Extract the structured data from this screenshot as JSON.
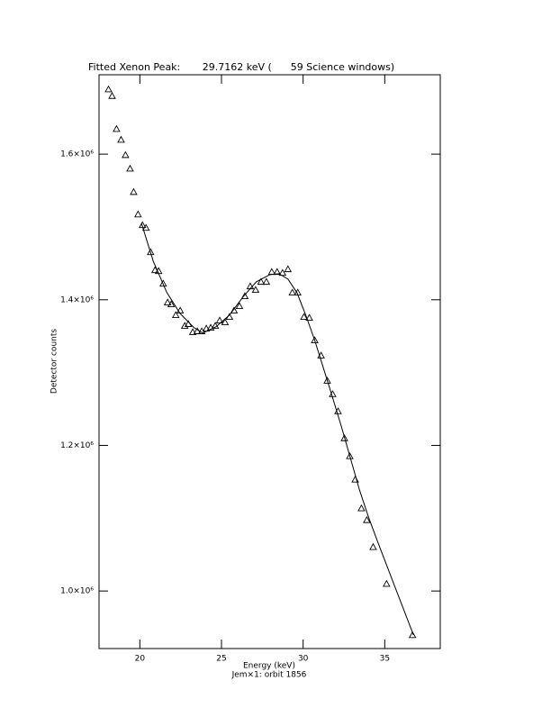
{
  "chart_data": {
    "type": "scatter",
    "title": "Fitted Xenon Peak:       29.7162 keV (      59 Science windows)",
    "xlabel": "Energy (keV)",
    "subcaption": "Jem×1: orbit 1856",
    "ylabel": "Detector counts",
    "xlim": [
      17.5,
      38.4
    ],
    "ylim": [
      921000,
      1709000
    ],
    "xticks": [
      20,
      25,
      30,
      35
    ],
    "yticks": [
      {
        "value": 1000000,
        "label": "1.0×10⁶"
      },
      {
        "value": 1200000,
        "label": "1.2×10⁶"
      },
      {
        "value": 1400000,
        "label": "1.4×10⁶"
      },
      {
        "value": 1600000,
        "label": "1.6×10⁶"
      }
    ],
    "color": "#000000",
    "points": {
      "x": [
        18.08,
        18.3,
        18.57,
        18.85,
        19.12,
        19.4,
        19.62,
        19.89,
        20.16,
        20.38,
        20.66,
        20.93,
        21.15,
        21.43,
        21.7,
        21.92,
        22.2,
        22.47,
        22.75,
        22.97,
        23.24,
        23.52,
        23.79,
        24.07,
        24.34,
        24.62,
        24.89,
        25.22,
        25.49,
        25.77,
        26.1,
        26.43,
        26.76,
        27.09,
        27.42,
        27.75,
        28.08,
        28.41,
        28.74,
        29.07,
        29.34,
        29.67,
        30.05,
        30.38,
        30.71,
        31.1,
        31.48,
        31.81,
        32.14,
        32.53,
        32.86,
        33.19,
        33.57,
        33.9,
        34.29,
        35.11,
        36.7
      ],
      "y": [
        1689000,
        1680000,
        1634600,
        1619800,
        1598800,
        1580200,
        1548100,
        1517300,
        1502500,
        1498800,
        1465400,
        1440700,
        1439500,
        1422200,
        1396300,
        1393800,
        1379000,
        1385200,
        1364200,
        1366700,
        1355600,
        1356800,
        1356800,
        1360500,
        1361700,
        1364200,
        1371600,
        1369100,
        1376500,
        1385200,
        1391400,
        1405000,
        1418500,
        1413600,
        1424700,
        1424700,
        1438300,
        1438300,
        1437000,
        1442000,
        1409900,
        1409900,
        1376500,
        1375300,
        1344400,
        1323500,
        1288900,
        1270400,
        1246900,
        1209900,
        1185200,
        1153100,
        1113600,
        1097500,
        1060500,
        1009900,
        939500
      ]
    },
    "fit": {
      "x": [
        20.1,
        20.82,
        21.65,
        22.47,
        23.3,
        23.85,
        24.67,
        25.49,
        26.32,
        27.14,
        27.97,
        28.52,
        29.07,
        29.62,
        30.16,
        30.71,
        31.26,
        31.81,
        32.36,
        32.91,
        33.46,
        34.01,
        34.56,
        35.11,
        35.66,
        36.21,
        36.76
      ],
      "y": [
        1505000,
        1453000,
        1410000,
        1381000,
        1362000,
        1354300,
        1363000,
        1379000,
        1404000,
        1424700,
        1434600,
        1435800,
        1428400,
        1409900,
        1379000,
        1344400,
        1305000,
        1265400,
        1224700,
        1181500,
        1138300,
        1101200,
        1068000,
        1035800,
        1003700,
        971600,
        939500
      ]
    }
  }
}
